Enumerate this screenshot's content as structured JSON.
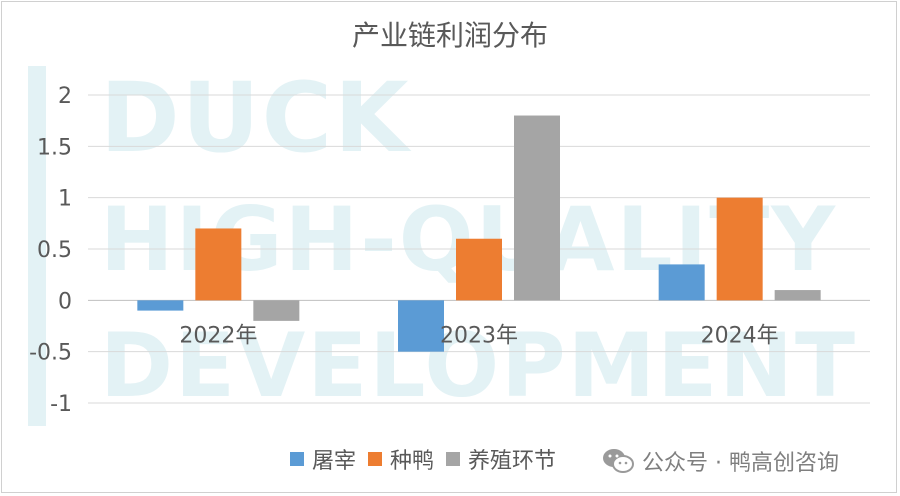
{
  "watermark": {
    "line1": "DUCK",
    "line2": "HIGH-QUALITY",
    "line3": "DEVELOPMENT"
  },
  "footer": {
    "brand": "公众号 · 鸭高创咨询",
    "icon": "wechat-icon"
  },
  "chart_data": {
    "type": "bar",
    "title": "产业链利润分布",
    "xlabel": "",
    "ylabel": "",
    "categories": [
      "2022年",
      "2023年",
      "2024年"
    ],
    "series": [
      {
        "name": "屠宰",
        "color": "#5b9bd5",
        "values": [
          -0.1,
          -0.5,
          0.35
        ]
      },
      {
        "name": "种鸭",
        "color": "#ed7d31",
        "values": [
          0.7,
          0.6,
          1.0
        ]
      },
      {
        "name": "养殖环节",
        "color": "#a5a5a5",
        "values": [
          -0.2,
          1.8,
          0.1
        ]
      }
    ],
    "ylim": [
      -1,
      2
    ],
    "yticks": [
      "2",
      "1.5",
      "1",
      "0.5",
      "0",
      "-0.5",
      "-1"
    ],
    "ytick_values": [
      2,
      1.5,
      1,
      0.5,
      0,
      -0.5,
      -1
    ],
    "grid": true,
    "legend_position": "bottom"
  }
}
